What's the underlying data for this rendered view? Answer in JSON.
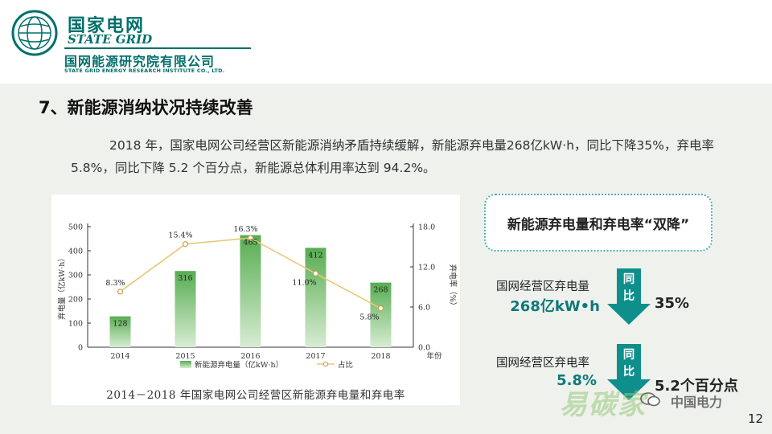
{
  "header": {
    "org_cn": "国家电网",
    "org_en": "STATE GRID",
    "institute_cn": "国网能源研究院有限公司",
    "institute_en": "STATE GRID ENERGY RESEARCH INSTITUTE CO., LTD.",
    "logo_icon": "state-grid-globe-logo"
  },
  "section": {
    "title": "7、新能源消纳状况持续改善",
    "paragraph": "2018 年，国家电网公司经营区新能源消纳矛盾持续缓解，新能源弃电量268亿kW·h，同比下降35%，弃电率5.8%，同比下降 5.2 个百分点，新能源总体利用率达到 94.2%。"
  },
  "chart_data": {
    "type": "bar",
    "title": "2014－2018 年国家电网公司经营区新能源弃电量和弃电率",
    "categories": [
      "2014",
      "2015",
      "2016",
      "2017",
      "2018"
    ],
    "xlabel": "年份",
    "ylabel": "弃电量（亿kW·h）",
    "y2label": "弃电率（%）",
    "ylim": [
      0,
      500
    ],
    "y2lim": [
      0,
      18
    ],
    "yticks": [
      "0",
      "100",
      "200",
      "300",
      "400",
      "500"
    ],
    "y2ticks": [
      "0.0",
      "6.0",
      "12.0",
      "18.0"
    ],
    "grid": false,
    "legend_position": "bottom",
    "series": [
      {
        "name": "新能源弃电量（亿kW·h）",
        "type": "bar",
        "axis": "left",
        "values": [
          128,
          316,
          465,
          412,
          268
        ],
        "labels": [
          "128",
          "316",
          "465",
          "412",
          "268"
        ]
      },
      {
        "name": "占比",
        "type": "line",
        "axis": "right",
        "values": [
          8.3,
          15.4,
          16.3,
          11.0,
          5.8
        ],
        "labels": [
          "8.3%",
          "15.4%",
          "16.3%",
          "11.0%",
          "5.8%"
        ]
      }
    ],
    "colors": {
      "bar": "#5fb35a",
      "line": "#e8c878",
      "marker_fill": "#ffffff"
    }
  },
  "panel": {
    "headline": "新能源弃电量和弃电率“双降”",
    "metric1": {
      "label": "国网经营区弃电量",
      "value": "268亿kW•h",
      "arrow_text_1": "同",
      "arrow_text_2": "比",
      "change": "35%"
    },
    "metric2": {
      "label": "国网经营区弃电率",
      "value": "5.8%",
      "arrow_text_1": "同",
      "arrow_text_2": "比",
      "change": "5.2个百分点"
    },
    "arrow_color": "#0e8f8c"
  },
  "footer": {
    "watermark_cn": "易碳家",
    "watermark_small": "中国电力",
    "wechat_icon": "wechat-icon",
    "page_number": "12"
  }
}
